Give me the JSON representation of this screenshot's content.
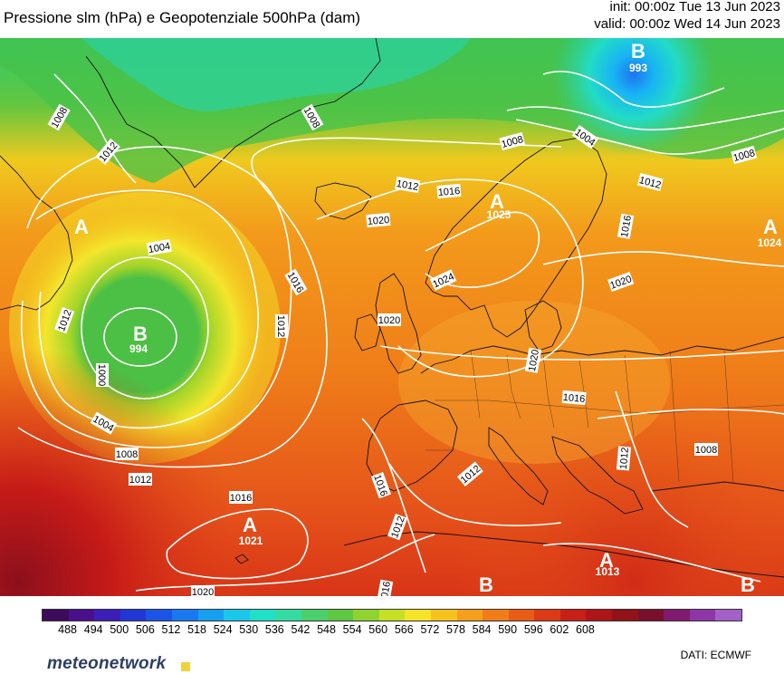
{
  "header": {
    "title": "Pressione slm (hPa) e Geopotenziale 500hPa (dam)",
    "init": "init: 00:00z Tue 13 Jun 2023",
    "valid": "valid: 00:00z Wed 14 Jun 2023"
  },
  "isobars": [
    {
      "label": "1008"
    },
    {
      "label": "1008"
    },
    {
      "label": "1008"
    },
    {
      "label": "1008"
    },
    {
      "label": "1004"
    },
    {
      "label": "1004"
    },
    {
      "label": "1004"
    },
    {
      "label": "1012"
    },
    {
      "label": "1012"
    },
    {
      "label": "1012"
    },
    {
      "label": "1012"
    },
    {
      "label": "1012"
    },
    {
      "label": "1012"
    },
    {
      "label": "1016"
    },
    {
      "label": "1016"
    },
    {
      "label": "1016"
    },
    {
      "label": "1016"
    },
    {
      "label": "1016"
    },
    {
      "label": "1016"
    },
    {
      "label": "1016"
    },
    {
      "label": "1020"
    },
    {
      "label": "1020"
    },
    {
      "label": "1020"
    },
    {
      "label": "1020"
    },
    {
      "label": "1020"
    },
    {
      "label": "1024"
    },
    {
      "label": "1000"
    },
    {
      "label": "1008"
    },
    {
      "label": "1012"
    },
    {
      "label": "1012"
    },
    {
      "label": "1012"
    },
    {
      "label": "1008"
    }
  ],
  "pressure_centers": [
    {
      "letter": "B",
      "value": "994"
    },
    {
      "letter": "B",
      "value": "993"
    },
    {
      "letter": "A",
      "value": "1021"
    },
    {
      "letter": "A",
      "value": "1025"
    },
    {
      "letter": "A",
      "value": "1024"
    },
    {
      "letter": "A",
      "value": "1013"
    },
    {
      "letter": "A",
      "value": ""
    },
    {
      "letter": "B",
      "value": ""
    },
    {
      "letter": "B",
      "value": ""
    }
  ],
  "legend": {
    "labels": [
      "488",
      "494",
      "500",
      "506",
      "512",
      "518",
      "524",
      "530",
      "536",
      "542",
      "548",
      "554",
      "560",
      "566",
      "572",
      "578",
      "584",
      "590",
      "596",
      "602",
      "608"
    ],
    "colors": [
      "#3d0b5c",
      "#4a0f8a",
      "#3b1fb8",
      "#2236d6",
      "#1a55e8",
      "#1a79f0",
      "#17a0f2",
      "#1ac7ea",
      "#20e0c8",
      "#33dca0",
      "#4ccf6d",
      "#5fc843",
      "#8fd42e",
      "#c6e025",
      "#f6e42a",
      "#f8c21e",
      "#f69f1c",
      "#f17d19",
      "#e85c17",
      "#dc3a15",
      "#c81f18",
      "#ae1519",
      "#921219",
      "#7a0f2d",
      "#7f1a6e",
      "#8e36a8",
      "#a45fc9"
    ]
  },
  "footer": {
    "logo": "meteonetwork",
    "credit": "DATI:  ECMWF"
  }
}
